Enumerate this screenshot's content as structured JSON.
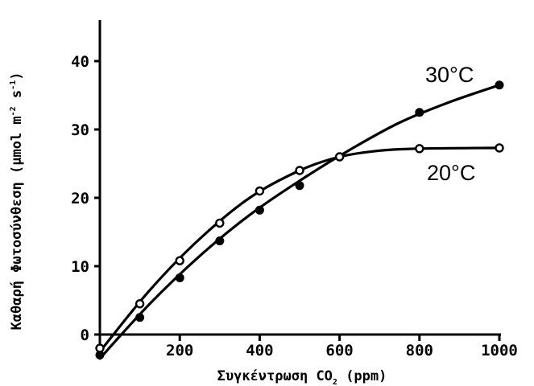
{
  "chart_data": {
    "type": "line",
    "title": "",
    "xlabel": "Συγκέντρωση CO₂ (ppm)",
    "ylabel": "Καθαρή Φωτοσύνθεση (μmol m⁻² s⁻¹)",
    "xlim": [
      0,
      1000
    ],
    "ylim": [
      -3,
      46
    ],
    "xticks": [
      200,
      400,
      600,
      800,
      1000
    ],
    "yticks": [
      0,
      10,
      20,
      30,
      40
    ],
    "grid": false,
    "series": [
      {
        "name": "30°C",
        "marker": "filled-circle",
        "x": [
          0,
          100,
          200,
          300,
          400,
          500,
          600,
          800,
          1000
        ],
        "y": [
          -3.0,
          2.5,
          8.3,
          13.7,
          18.2,
          21.8,
          26.0,
          32.5,
          36.5
        ]
      },
      {
        "name": "20°C",
        "marker": "open-circle",
        "x": [
          0,
          100,
          200,
          300,
          400,
          500,
          600,
          800,
          1000
        ],
        "y": [
          -2.0,
          4.5,
          10.8,
          16.3,
          21.0,
          24.0,
          26.0,
          27.2,
          27.3
        ]
      }
    ],
    "curves": [
      {
        "series": "30°C",
        "x": [
          0,
          125,
          250,
          375,
          500,
          625,
          750,
          875,
          1000
        ],
        "y": [
          -3.5,
          4.5,
          11.5,
          17.5,
          22.5,
          27.0,
          31.0,
          34.0,
          36.5
        ]
      },
      {
        "series": "20°C",
        "x": [
          0,
          125,
          250,
          375,
          500,
          600,
          700,
          800,
          1000
        ],
        "y": [
          -2.5,
          6.5,
          14.0,
          20.0,
          24.0,
          26.0,
          26.9,
          27.2,
          27.3
        ]
      }
    ]
  }
}
